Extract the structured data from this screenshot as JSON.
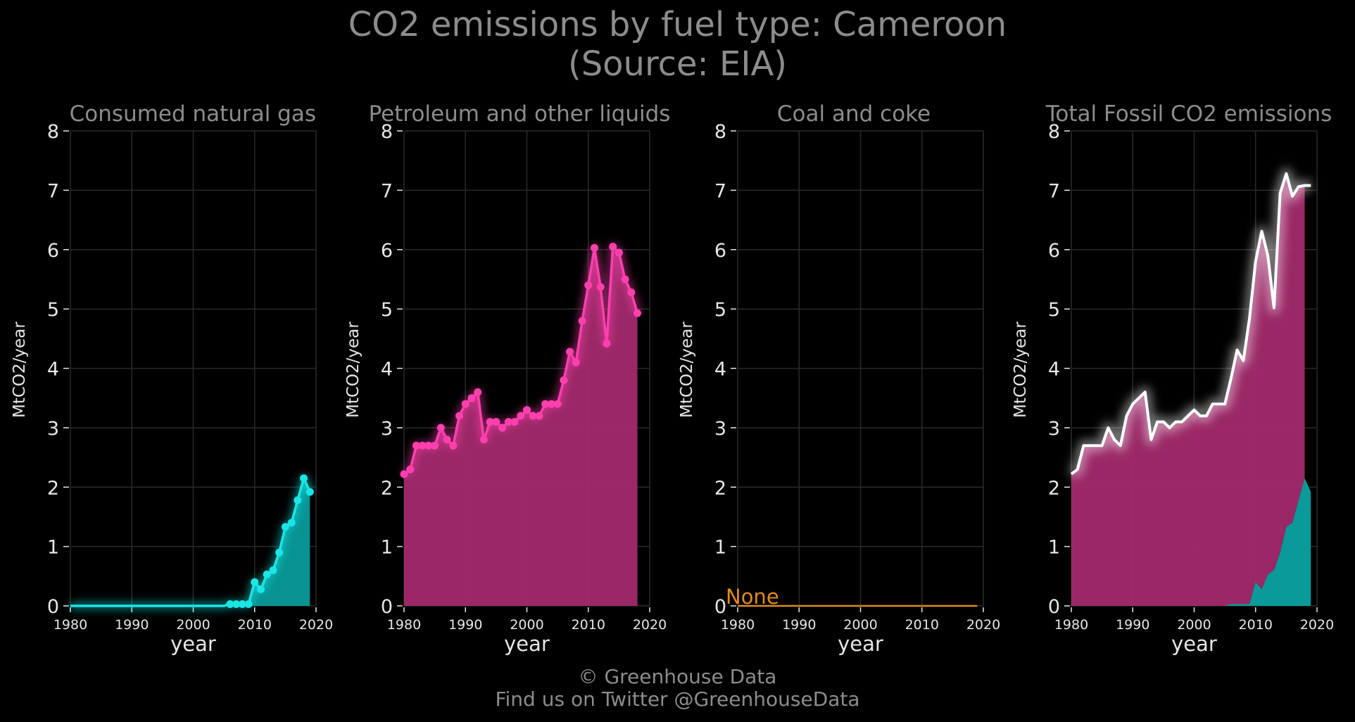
{
  "title_line1": "CO2 emissions by fuel type: Cameroon",
  "title_line2": "(Source: EIA)",
  "footer_line1": "© Greenhouse Data",
  "footer_line2": "Find us on Twitter @GreenhouseData",
  "colors": {
    "background": "#000000",
    "grid": "#2a2a2a",
    "gas": "#19e6e6",
    "gas_fill": "#0a9a9a",
    "petroleum": "#ff3fae",
    "petroleum_fill": "#a22a6c",
    "coal": "#e08a1e",
    "total_line": "#ffffff",
    "text_muted": "#8c8c8c",
    "text_light": "#e6e6e6"
  },
  "chart_data": [
    {
      "type": "area",
      "title": "Consumed natural gas",
      "xlabel": "year",
      "ylabel": "MtCO2/year",
      "xlim": [
        1980,
        2020
      ],
      "ylim": [
        0,
        8
      ],
      "xticks": [
        1980,
        1990,
        2000,
        2010,
        2020
      ],
      "yticks": [
        0,
        1,
        2,
        3,
        4,
        5,
        6,
        7,
        8
      ],
      "grid": true,
      "series": [
        {
          "x": [
            1980,
            1981,
            1982,
            1983,
            1984,
            1985,
            1986,
            1987,
            1988,
            1989,
            1990,
            1991,
            1992,
            1993,
            1994,
            1995,
            1996,
            1997,
            1998,
            1999,
            2000,
            2001,
            2002,
            2003,
            2004,
            2005,
            2006,
            2007,
            2008,
            2009,
            2010,
            2011,
            2012,
            2013,
            2014,
            2015,
            2016,
            2017,
            2018,
            2019
          ],
          "values": [
            0,
            0,
            0,
            0,
            0,
            0,
            0,
            0,
            0,
            0,
            0,
            0,
            0,
            0,
            0,
            0,
            0,
            0,
            0,
            0,
            0,
            0,
            0,
            0,
            0,
            0,
            0.03,
            0.03,
            0.03,
            0.03,
            0.4,
            0.28,
            0.53,
            0.6,
            0.9,
            1.33,
            1.4,
            1.78,
            2.15,
            1.92
          ],
          "markers_from": 2006
        }
      ]
    },
    {
      "type": "area",
      "title": "Petroleum and other liquids",
      "xlabel": "year",
      "ylabel": "MtCO2/year",
      "xlim": [
        1980,
        2020
      ],
      "ylim": [
        0,
        8
      ],
      "xticks": [
        1980,
        1990,
        2000,
        2010,
        2020
      ],
      "yticks": [
        0,
        1,
        2,
        3,
        4,
        5,
        6,
        7,
        8
      ],
      "grid": true,
      "series": [
        {
          "x": [
            1980,
            1981,
            1982,
            1983,
            1984,
            1985,
            1986,
            1987,
            1988,
            1989,
            1990,
            1991,
            1992,
            1993,
            1994,
            1995,
            1996,
            1997,
            1998,
            1999,
            2000,
            2001,
            2002,
            2003,
            2004,
            2005,
            2006,
            2007,
            2008,
            2009,
            2010,
            2011,
            2012,
            2013,
            2014,
            2015,
            2016,
            2017,
            2018
          ],
          "values": [
            2.22,
            2.3,
            2.7,
            2.7,
            2.7,
            2.7,
            3.0,
            2.8,
            2.7,
            3.2,
            3.4,
            3.5,
            3.6,
            2.8,
            3.1,
            3.1,
            3.0,
            3.1,
            3.1,
            3.2,
            3.3,
            3.2,
            3.2,
            3.4,
            3.4,
            3.4,
            3.8,
            4.28,
            4.1,
            4.8,
            5.4,
            6.03,
            5.37,
            4.42,
            6.05,
            5.95,
            5.5,
            5.28,
            4.93
          ],
          "markers_from": 1980
        }
      ]
    },
    {
      "type": "line",
      "title": "Coal and coke",
      "xlabel": "year",
      "ylabel": "MtCO2/year",
      "xlim": [
        1980,
        2020
      ],
      "ylim": [
        0,
        8
      ],
      "xticks": [
        1980,
        1990,
        2000,
        2010,
        2020
      ],
      "yticks": [
        0,
        1,
        2,
        3,
        4,
        5,
        6,
        7,
        8
      ],
      "grid": true,
      "annotation": "None",
      "series": [
        {
          "x": [
            1980,
            2019
          ],
          "values": [
            0,
            0
          ]
        }
      ]
    },
    {
      "type": "area",
      "title": "Total Fossil CO2 emissions",
      "xlabel": "year",
      "ylabel": "MtCO2/year",
      "xlim": [
        1980,
        2020
      ],
      "ylim": [
        0,
        8
      ],
      "xticks": [
        1980,
        1990,
        2000,
        2010,
        2020
      ],
      "yticks": [
        0,
        1,
        2,
        3,
        4,
        5,
        6,
        7,
        8
      ],
      "grid": true,
      "stacked": true,
      "series": [
        {
          "x": [
            1980,
            1981,
            1982,
            1983,
            1984,
            1985,
            1986,
            1987,
            1988,
            1989,
            1990,
            1991,
            1992,
            1993,
            1994,
            1995,
            1996,
            1997,
            1998,
            1999,
            2000,
            2001,
            2002,
            2003,
            2004,
            2005,
            2006,
            2007,
            2008,
            2009,
            2010,
            2011,
            2012,
            2013,
            2014,
            2015,
            2016,
            2017,
            2018,
            2019
          ],
          "values": [
            0,
            0,
            0,
            0,
            0,
            0,
            0,
            0,
            0,
            0,
            0,
            0,
            0,
            0,
            0,
            0,
            0,
            0,
            0,
            0,
            0,
            0,
            0,
            0,
            0,
            0,
            0.03,
            0.03,
            0.03,
            0.03,
            0.4,
            0.28,
            0.53,
            0.6,
            0.9,
            1.33,
            1.4,
            1.78,
            2.15,
            1.92
          ]
        },
        {
          "x": [
            1980,
            1981,
            1982,
            1983,
            1984,
            1985,
            1986,
            1987,
            1988,
            1989,
            1990,
            1991,
            1992,
            1993,
            1994,
            1995,
            1996,
            1997,
            1998,
            1999,
            2000,
            2001,
            2002,
            2003,
            2004,
            2005,
            2006,
            2007,
            2008,
            2009,
            2010,
            2011,
            2012,
            2013,
            2014,
            2015,
            2016,
            2017,
            2018
          ],
          "values": [
            2.22,
            2.3,
            2.7,
            2.7,
            2.7,
            2.7,
            3.0,
            2.8,
            2.7,
            3.2,
            3.4,
            3.5,
            3.6,
            2.8,
            3.1,
            3.1,
            3.0,
            3.1,
            3.1,
            3.2,
            3.3,
            3.2,
            3.2,
            3.4,
            3.4,
            3.4,
            3.8,
            4.28,
            4.1,
            4.8,
            5.4,
            6.03,
            5.37,
            4.42,
            6.05,
            5.95,
            5.5,
            5.28,
            4.93
          ]
        },
        {
          "x": [
            1980,
            1981,
            1982,
            1983,
            1984,
            1985,
            1986,
            1987,
            1988,
            1989,
            1990,
            1991,
            1992,
            1993,
            1994,
            1995,
            1996,
            1997,
            1998,
            1999,
            2000,
            2001,
            2002,
            2003,
            2004,
            2005,
            2006,
            2007,
            2008,
            2009,
            2010,
            2011,
            2012,
            2013,
            2014,
            2015,
            2016,
            2017,
            2018,
            2019
          ],
          "values": [
            2.22,
            2.3,
            2.7,
            2.7,
            2.7,
            2.7,
            3.0,
            2.8,
            2.7,
            3.2,
            3.4,
            3.5,
            3.6,
            2.8,
            3.1,
            3.1,
            3.0,
            3.1,
            3.1,
            3.2,
            3.3,
            3.2,
            3.2,
            3.4,
            3.4,
            3.4,
            3.83,
            4.31,
            4.13,
            4.83,
            5.8,
            6.31,
            5.9,
            5.02,
            6.95,
            7.28,
            6.9,
            7.06,
            7.08,
            7.08
          ]
        }
      ]
    }
  ]
}
